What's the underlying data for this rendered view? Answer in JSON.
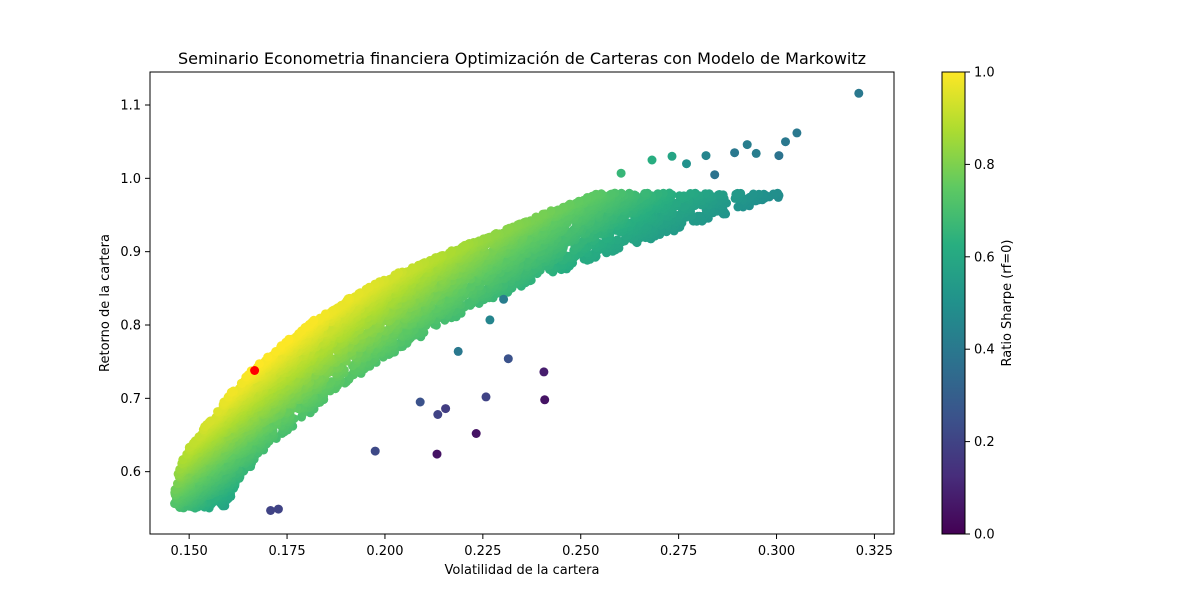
{
  "chart_data": {
    "type": "scatter",
    "title": "Seminario Econometria financiera Optimización de Carteras con Modelo de Markowitz",
    "xlabel": "Volatilidad de la cartera",
    "ylabel": "Retorno de la cartera",
    "xlim": [
      0.14,
      0.33
    ],
    "ylim": [
      0.515,
      1.145
    ],
    "xticks": [
      "0.150",
      "0.175",
      "0.200",
      "0.225",
      "0.250",
      "0.275",
      "0.300",
      "0.325"
    ],
    "yticks": [
      "0.6",
      "0.7",
      "0.8",
      "0.9",
      "1.0",
      "1.1"
    ],
    "grid": false,
    "colormap": "viridis",
    "colorbar": {
      "label": "Ratio Sharpe (rf=0)",
      "range": [
        0.0,
        1.0
      ],
      "ticks": [
        "0.0",
        "0.2",
        "0.4",
        "0.6",
        "0.8",
        "1.0"
      ]
    },
    "highlight": {
      "x": 0.1667,
      "y": 0.738,
      "color": "#ff0000"
    },
    "approx_total_points": 5000,
    "outliers": [
      {
        "x": 0.321,
        "y": 1.116,
        "c": 0.4
      },
      {
        "x": 0.3052,
        "y": 1.062,
        "c": 0.4
      },
      {
        "x": 0.3023,
        "y": 1.05,
        "c": 0.4
      },
      {
        "x": 0.3006,
        "y": 1.031,
        "c": 0.38
      },
      {
        "x": 0.2948,
        "y": 1.034,
        "c": 0.42
      },
      {
        "x": 0.2925,
        "y": 1.046,
        "c": 0.42
      },
      {
        "x": 0.2893,
        "y": 1.035,
        "c": 0.4
      },
      {
        "x": 0.2842,
        "y": 1.005,
        "c": 0.38
      },
      {
        "x": 0.282,
        "y": 1.031,
        "c": 0.45
      },
      {
        "x": 0.277,
        "y": 1.02,
        "c": 0.5
      },
      {
        "x": 0.2733,
        "y": 1.03,
        "c": 0.58
      },
      {
        "x": 0.2682,
        "y": 1.025,
        "c": 0.62
      },
      {
        "x": 0.2603,
        "y": 1.007,
        "c": 0.66
      },
      {
        "x": 0.2406,
        "y": 0.736,
        "c": 0.08
      },
      {
        "x": 0.2408,
        "y": 0.698,
        "c": 0.05
      },
      {
        "x": 0.2315,
        "y": 0.754,
        "c": 0.25
      },
      {
        "x": 0.2258,
        "y": 0.702,
        "c": 0.2
      },
      {
        "x": 0.2233,
        "y": 0.652,
        "c": 0.05
      },
      {
        "x": 0.2133,
        "y": 0.624,
        "c": 0.05
      },
      {
        "x": 0.2155,
        "y": 0.686,
        "c": 0.18
      },
      {
        "x": 0.2135,
        "y": 0.678,
        "c": 0.2
      },
      {
        "x": 0.2268,
        "y": 0.807,
        "c": 0.45
      },
      {
        "x": 0.2303,
        "y": 0.835,
        "c": 0.42
      },
      {
        "x": 0.2187,
        "y": 0.764,
        "c": 0.4
      },
      {
        "x": 0.209,
        "y": 0.695,
        "c": 0.25
      },
      {
        "x": 0.1975,
        "y": 0.628,
        "c": 0.22
      },
      {
        "x": 0.1708,
        "y": 0.547,
        "c": 0.2
      },
      {
        "x": 0.1728,
        "y": 0.549,
        "c": 0.2
      }
    ]
  }
}
